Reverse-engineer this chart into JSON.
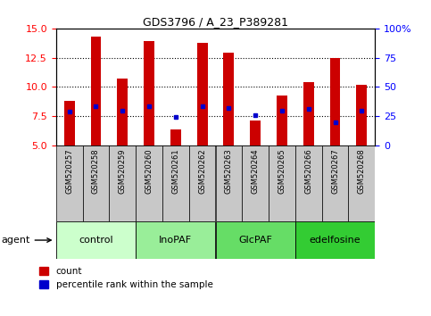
{
  "title": "GDS3796 / A_23_P389281",
  "samples": [
    "GSM520257",
    "GSM520258",
    "GSM520259",
    "GSM520260",
    "GSM520261",
    "GSM520262",
    "GSM520263",
    "GSM520264",
    "GSM520265",
    "GSM520266",
    "GSM520267",
    "GSM520268"
  ],
  "bar_heights": [
    8.8,
    14.3,
    10.7,
    13.9,
    6.4,
    13.8,
    12.9,
    7.1,
    9.3,
    10.4,
    12.5,
    10.2
  ],
  "percentile_values": [
    7.9,
    8.35,
    8.0,
    8.35,
    7.45,
    8.35,
    8.2,
    7.55,
    7.95,
    8.1,
    7.0,
    8.0
  ],
  "y_min": 5,
  "y_max": 15,
  "bar_color": "#cc0000",
  "dot_color": "#0000cc",
  "groups": [
    {
      "label": "control",
      "start": 0,
      "end": 3,
      "color": "#ccffcc"
    },
    {
      "label": "InoPAF",
      "start": 3,
      "end": 6,
      "color": "#99ee99"
    },
    {
      "label": "GlcPAF",
      "start": 6,
      "end": 9,
      "color": "#66dd66"
    },
    {
      "label": "edelfosine",
      "start": 9,
      "end": 12,
      "color": "#33cc33"
    }
  ],
  "agent_label": "agent",
  "left_yticks": [
    5,
    7.5,
    10,
    12.5,
    15
  ],
  "right_yticks": [
    0,
    25,
    50,
    75,
    100
  ],
  "right_yticklabels": [
    "0",
    "25",
    "50",
    "75",
    "100%"
  ],
  "grid_yticks": [
    7.5,
    10.0,
    12.5
  ],
  "legend_count_label": "count",
  "legend_pct_label": "percentile rank within the sample",
  "tick_area_color": "#c8c8c8",
  "bar_width": 0.4
}
